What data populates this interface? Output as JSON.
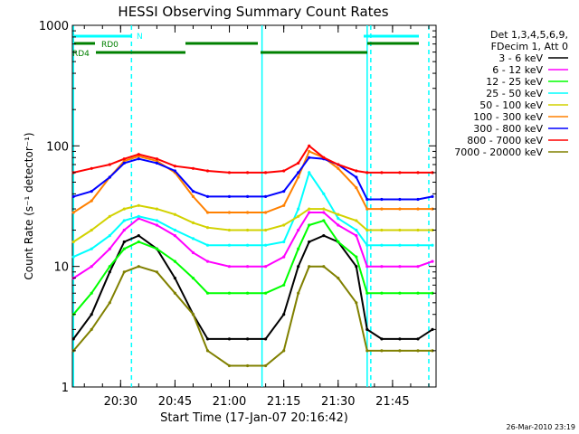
{
  "chart_data": {
    "type": "line",
    "title": "HESSI Observing Summary Count Rates",
    "xlabel": "Start Time (17-Jan-07 20:16:42)",
    "ylabel": "Count Rate (s⁻¹ detector⁻¹)",
    "y_scale": "log",
    "ylim": [
      1,
      1000
    ],
    "xlim": [
      "20:16:42",
      "21:57:00"
    ],
    "x_tick_labels": [
      "20:30",
      "20:45",
      "21:00",
      "21:15",
      "21:30",
      "21:45"
    ],
    "y_tick_labels": [
      "1",
      "10",
      "100",
      "1000"
    ],
    "legend_title_lines": [
      "Det 1,3,4,5,6,9,",
      "FDecim 1, Att 0"
    ],
    "timestamp": "26-Mar-2010 23:19",
    "x": [
      "20:17",
      "20:22",
      "20:27",
      "20:31",
      "20:35",
      "20:40",
      "20:45",
      "20:50",
      "20:54",
      "21:00",
      "21:05",
      "21:10",
      "21:15",
      "21:19",
      "21:22",
      "21:26",
      "21:30",
      "21:35",
      "21:38",
      "21:42",
      "21:47",
      "21:52",
      "21:56"
    ],
    "series": [
      {
        "name": "3 - 6 keV",
        "color": "#000000",
        "values": [
          2.5,
          4,
          9,
          16,
          18,
          14,
          8,
          4,
          2.5,
          2.5,
          2.5,
          2.5,
          4,
          10,
          16,
          18,
          16,
          10,
          3,
          2.5,
          2.5,
          2.5,
          3
        ]
      },
      {
        "name": "6 - 12 keV",
        "color": "#ff00ff",
        "values": [
          8,
          10,
          14,
          20,
          25,
          22,
          18,
          13,
          11,
          10,
          10,
          10,
          12,
          20,
          28,
          28,
          22,
          18,
          10,
          10,
          10,
          10,
          11
        ]
      },
      {
        "name": "12 - 25 keV",
        "color": "#00ff00",
        "values": [
          4,
          6,
          10,
          14,
          16,
          14,
          11,
          8,
          6,
          6,
          6,
          6,
          7,
          14,
          22,
          24,
          16,
          12,
          6,
          6,
          6,
          6,
          6
        ]
      },
      {
        "name": "25 - 50 keV",
        "color": "#00ffff",
        "values": [
          12,
          14,
          18,
          24,
          26,
          24,
          20,
          17,
          15,
          15,
          15,
          15,
          16,
          30,
          60,
          40,
          25,
          20,
          15,
          15,
          15,
          15,
          15
        ]
      },
      {
        "name": "50 - 100 keV",
        "color": "#d2d200",
        "values": [
          16,
          20,
          26,
          30,
          32,
          30,
          27,
          23,
          21,
          20,
          20,
          20,
          22,
          26,
          30,
          30,
          27,
          24,
          20,
          20,
          20,
          20,
          20
        ]
      },
      {
        "name": "100 - 300 keV",
        "color": "#ff8000",
        "values": [
          28,
          35,
          55,
          75,
          82,
          75,
          60,
          38,
          28,
          28,
          28,
          28,
          32,
          55,
          90,
          80,
          65,
          45,
          30,
          30,
          30,
          30,
          30
        ]
      },
      {
        "name": "300 - 800 keV",
        "color": "#0000ff",
        "values": [
          38,
          42,
          55,
          72,
          78,
          72,
          62,
          42,
          38,
          38,
          38,
          38,
          42,
          60,
          80,
          78,
          70,
          55,
          36,
          36,
          36,
          36,
          38
        ]
      },
      {
        "name": "800 - 7000 keV",
        "color": "#ff0000",
        "values": [
          60,
          65,
          70,
          78,
          85,
          78,
          68,
          65,
          62,
          60,
          60,
          60,
          62,
          72,
          100,
          80,
          70,
          62,
          60,
          60,
          60,
          60,
          60
        ]
      },
      {
        "name": "7000 - 20000 keV",
        "color": "#808000",
        "values": [
          2,
          3,
          5,
          9,
          10,
          9,
          6,
          4,
          2,
          1.5,
          1.5,
          1.5,
          2,
          6,
          10,
          10,
          8,
          5,
          2,
          2,
          2,
          2,
          2
        ]
      }
    ],
    "annotations": {
      "flag_labels": [
        "N",
        "RD0",
        "RD4"
      ],
      "vertical_markers_solid": [
        "20:17",
        "21:09",
        "21:38"
      ],
      "vertical_markers_dashed": [
        "20:33",
        "21:39",
        "21:55"
      ]
    },
    "grid": false,
    "legend_position": "right"
  }
}
